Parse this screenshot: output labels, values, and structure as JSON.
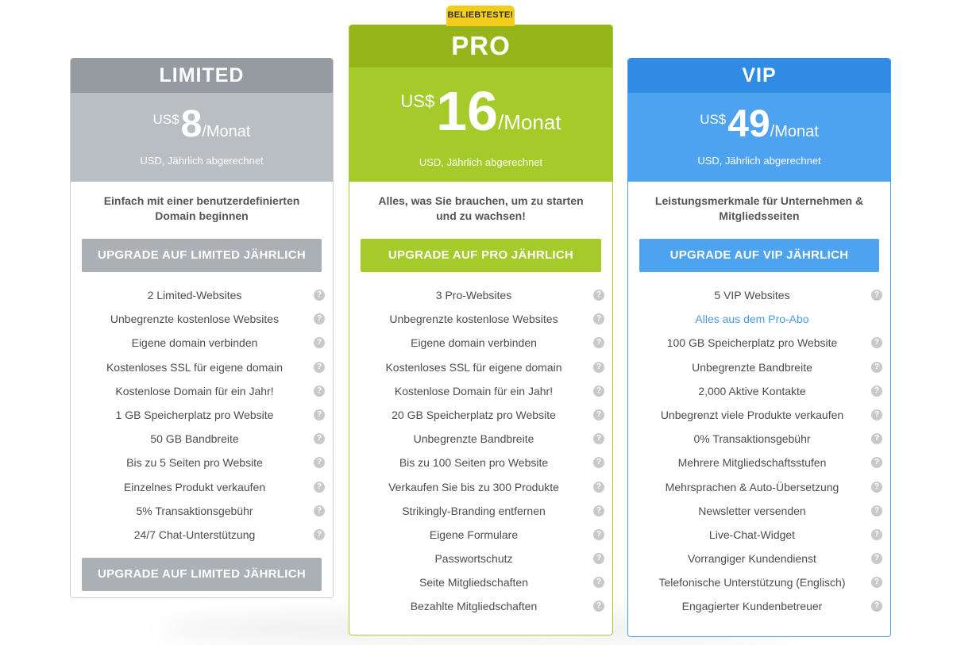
{
  "badge": "BELIEBTESTE!",
  "plans": {
    "limited": {
      "title": "LIMITED",
      "currency": "US$",
      "amount": "8",
      "period": "/Monat",
      "billed": "USD, Jährlich abgerechnet",
      "description": "Einfach mit einer benutzerdefinierten Domain beginnen",
      "button": "UPGRADE AUF LIMITED JÄHRLICH",
      "features": [
        "2 Limited-Websites",
        "Unbegrenzte kostenlose Websites",
        "Eigene domain verbinden",
        "Kostenloses SSL für eigene domain",
        "Kostenlose Domain für ein Jahr!",
        "1 GB Speicherplatz pro Website",
        "50 GB Bandbreite",
        "Bis zu 5 Seiten pro Website",
        "Einzelnes Produkt verkaufen",
        "5% Transaktionsgebühr",
        "24/7 Chat-Unterstützung"
      ],
      "button_bottom": "UPGRADE AUF LIMITED JÄHRLICH"
    },
    "pro": {
      "title": "PRO",
      "currency": "US$",
      "amount": "16",
      "period": "/Monat",
      "billed": "USD, Jährlich abgerechnet",
      "description": "Alles, was Sie brauchen, um zu starten und zu wachsen!",
      "button": "UPGRADE AUF PRO JÄHRLICH",
      "features": [
        "3 Pro-Websites",
        "Unbegrenzte kostenlose Websites",
        "Eigene domain verbinden",
        "Kostenloses SSL für eigene domain",
        "Kostenlose Domain für ein Jahr!",
        "20 GB Speicherplatz pro Website",
        "Unbegrenzte Bandbreite",
        "Bis zu 100 Seiten pro Website",
        "Verkaufen Sie bis zu 300 Produkte",
        "Strikingly-Branding entfernen",
        "Eigene Formulare",
        "Passwortschutz",
        "Seite Mitgliedschaften",
        "Bezahlte Mitgliedschaften"
      ]
    },
    "vip": {
      "title": "VIP",
      "currency": "US$",
      "amount": "49",
      "period": "/Monat",
      "billed": "USD, Jährlich abgerechnet",
      "description": "Leistungsmerkmale für Unternehmen & Mitgliedsseiten",
      "button": "UPGRADE AUF VIP JÄHRLICH",
      "features": [
        "5 VIP Websites",
        "Alles aus dem Pro-Abo",
        "100 GB Speicherplatz pro Website",
        "Unbegrenzte Bandbreite",
        "2,000 Aktive Kontakte",
        "Unbegrenzt viele Produkte verkaufen",
        "0% Transaktionsgebühr",
        "Mehrere Mitgliedschaftsstufen",
        "Mehrsprachen & Auto-Übersetzung",
        "Newsletter versenden",
        "Live-Chat-Widget",
        "Vorrangiger Kundendienst",
        "Telefonische Unterstützung (Englisch)",
        "Engagierter Kundenbetreuer"
      ]
    }
  },
  "icons": {
    "help": "question-circle-icon"
  },
  "colors": {
    "limited_header": "#969ba1",
    "limited_price": "#b9bec3",
    "pro_header": "#95b51a",
    "pro_price": "#a5cb2b",
    "vip_header": "#2f8be3",
    "vip_price": "#4ea3f0",
    "badge": "#f3cd1c",
    "link": "#4a9be8"
  }
}
